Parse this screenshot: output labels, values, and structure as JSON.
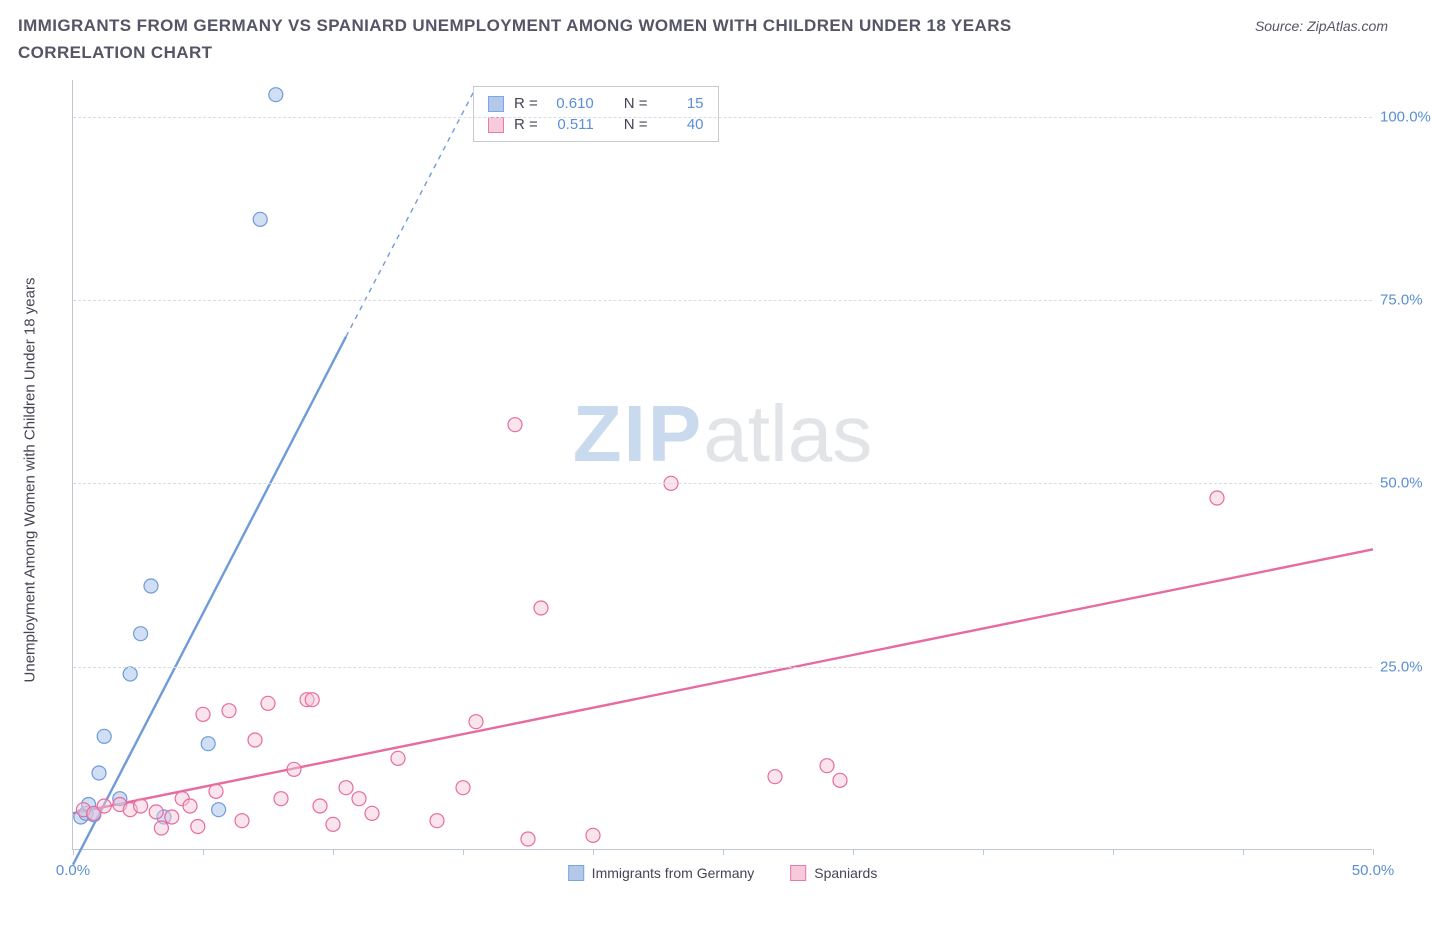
{
  "header": {
    "title": "IMMIGRANTS FROM GERMANY VS SPANIARD UNEMPLOYMENT AMONG WOMEN WITH CHILDREN UNDER 18 YEARS CORRELATION CHART",
    "source": "Source: ZipAtlas.com"
  },
  "watermark": {
    "part1": "ZIP",
    "part2": "atlas"
  },
  "chart": {
    "type": "scatter",
    "ylabel": "Unemployment Among Women with Children Under 18 years",
    "xlim": [
      0,
      50
    ],
    "ylim": [
      0,
      105
    ],
    "xtick_positions": [
      0,
      5,
      10,
      15,
      20,
      25,
      30,
      35,
      40,
      45,
      50
    ],
    "xtick_labels": {
      "0": "0.0%",
      "50": "50.0%"
    },
    "ytick_positions": [
      25,
      50,
      75,
      100
    ],
    "ytick_labels": {
      "25": "25.0%",
      "50": "50.0%",
      "75": "75.0%",
      "100": "100.0%"
    },
    "background_color": "#ffffff",
    "grid_color": "#d8dde2",
    "axis_color": "#bfc8d0",
    "tick_label_color": "#5b8fd6",
    "marker_radius": 7,
    "marker_stroke_width": 1.2,
    "trend_line_width": 2.4,
    "series": [
      {
        "id": "germany",
        "label": "Immigrants from Germany",
        "color_fill": "#aac4ea",
        "color_stroke": "#6f9bd8",
        "fill_opacity": 0.55,
        "R": "0.610",
        "N": "15",
        "points": [
          [
            0.3,
            4.5
          ],
          [
            0.5,
            5.0
          ],
          [
            0.6,
            6.2
          ],
          [
            0.8,
            4.8
          ],
          [
            1.0,
            10.5
          ],
          [
            1.2,
            15.5
          ],
          [
            1.8,
            7.0
          ],
          [
            2.2,
            24.0
          ],
          [
            2.6,
            29.5
          ],
          [
            3.0,
            36.0
          ],
          [
            3.5,
            4.5
          ],
          [
            5.2,
            14.5
          ],
          [
            5.6,
            5.5
          ],
          [
            7.2,
            86.0
          ],
          [
            7.8,
            103.0
          ]
        ],
        "trend": {
          "x1": 0,
          "y1": -2,
          "x2_solid": 10.5,
          "y2_solid": 70,
          "x2_dash": 15.5,
          "y2_dash": 104
        }
      },
      {
        "id": "spaniards",
        "label": "Spaniards",
        "color_fill": "#f6c5d6",
        "color_stroke": "#e76ba0",
        "fill_opacity": 0.45,
        "R": "0.511",
        "N": "40",
        "points": [
          [
            0.4,
            5.5
          ],
          [
            0.8,
            5.0
          ],
          [
            1.2,
            6.0
          ],
          [
            1.8,
            6.2
          ],
          [
            2.2,
            5.5
          ],
          [
            2.6,
            6.0
          ],
          [
            3.2,
            5.2
          ],
          [
            3.4,
            3.0
          ],
          [
            3.8,
            4.5
          ],
          [
            4.2,
            7.0
          ],
          [
            4.5,
            6.0
          ],
          [
            4.8,
            3.2
          ],
          [
            5.0,
            18.5
          ],
          [
            5.5,
            8.0
          ],
          [
            6.0,
            19.0
          ],
          [
            6.5,
            4.0
          ],
          [
            7.0,
            15.0
          ],
          [
            7.5,
            20.0
          ],
          [
            8.0,
            7.0
          ],
          [
            8.5,
            11.0
          ],
          [
            9.0,
            20.5
          ],
          [
            9.2,
            20.5
          ],
          [
            9.5,
            6.0
          ],
          [
            10.0,
            3.5
          ],
          [
            10.5,
            8.5
          ],
          [
            11.0,
            7.0
          ],
          [
            11.5,
            5.0
          ],
          [
            12.5,
            12.5
          ],
          [
            14.0,
            4.0
          ],
          [
            15.0,
            8.5
          ],
          [
            15.5,
            17.5
          ],
          [
            17.0,
            58.0
          ],
          [
            17.5,
            1.5
          ],
          [
            18.0,
            33.0
          ],
          [
            20.0,
            2.0
          ],
          [
            23.0,
            50.0
          ],
          [
            27.0,
            10.0
          ],
          [
            29.0,
            11.5
          ],
          [
            29.5,
            9.5
          ],
          [
            44.0,
            48.0
          ]
        ],
        "trend": {
          "x1": 0,
          "y1": 5,
          "x2_solid": 50,
          "y2_solid": 41,
          "x2_dash": 50,
          "y2_dash": 41
        }
      }
    ],
    "legend_top": {
      "r_label": "R =",
      "n_label": "N ="
    },
    "legend_bottom_labels": [
      "Immigrants from Germany",
      "Spaniards"
    ]
  }
}
